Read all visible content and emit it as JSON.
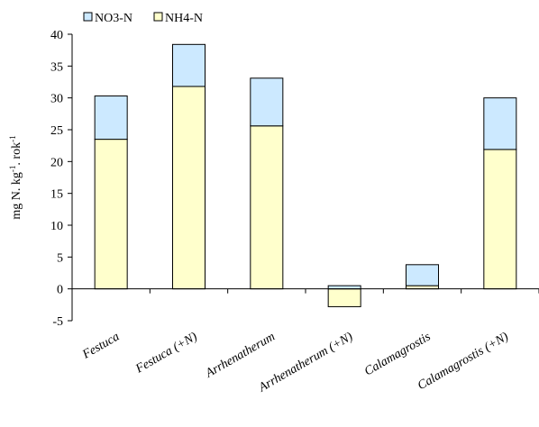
{
  "chart_data": {
    "type": "bar",
    "stacked": true,
    "categories": [
      "Festuca",
      "Festuca (+N)",
      "Arrhenatherum",
      "Arrhenatherum (+N)",
      "Calamagrostis",
      "Calamagrostis (+N)"
    ],
    "series": [
      {
        "name": "NH4-N",
        "color": "#ffffcc",
        "values": [
          23.5,
          31.8,
          25.6,
          -2.8,
          0.5,
          21.9
        ]
      },
      {
        "name": "NO3-N",
        "color": "#cce9ff",
        "values": [
          6.8,
          6.6,
          7.5,
          0.5,
          3.3,
          8.1
        ]
      }
    ],
    "legend": {
      "position": "top-left",
      "order": [
        "NO3-N",
        "NH4-N"
      ]
    },
    "ylabel": "mg N. kg-1. rok-1",
    "ylim": [
      -5,
      40
    ],
    "yticks": [
      -5,
      0,
      5,
      10,
      15,
      20,
      25,
      30,
      35,
      40
    ],
    "grid": false
  }
}
